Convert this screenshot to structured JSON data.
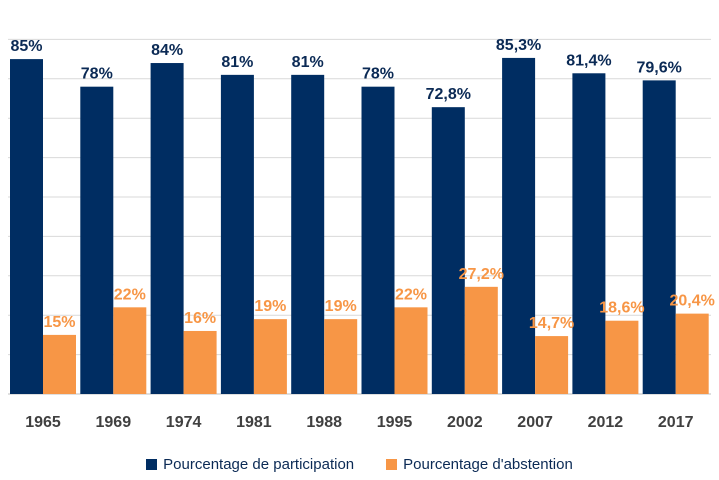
{
  "chart_data": {
    "type": "bar",
    "title": "",
    "xlabel": "",
    "ylabel": "",
    "ylim": [
      0,
      100
    ],
    "grid": true,
    "legend_position": "bottom",
    "categories": [
      "1965",
      "1969",
      "1974",
      "1981",
      "1988",
      "1995",
      "2002",
      "2007",
      "2012",
      "2017"
    ],
    "series": [
      {
        "name": "Pourcentage de participation",
        "color": "#002d62",
        "label_color": "#0b2a55",
        "values": [
          85,
          78,
          84,
          81,
          81,
          78,
          72.8,
          85.3,
          81.4,
          79.6
        ],
        "labels": [
          "85%",
          "78%",
          "84%",
          "81%",
          "81%",
          "78%",
          "72,8%",
          "85,3%",
          "81,4%",
          "79,6%"
        ]
      },
      {
        "name": "Pourcentage d'abstention",
        "color": "#f79646",
        "label_color": "#f79646",
        "values": [
          15,
          22,
          16,
          19,
          19,
          22,
          27.2,
          14.7,
          18.6,
          20.4
        ],
        "labels": [
          "15%",
          "22%",
          "16%",
          "19%",
          "19%",
          "22%",
          "27,2%",
          "14,7%",
          "18,6%",
          "20,4%"
        ]
      }
    ]
  }
}
